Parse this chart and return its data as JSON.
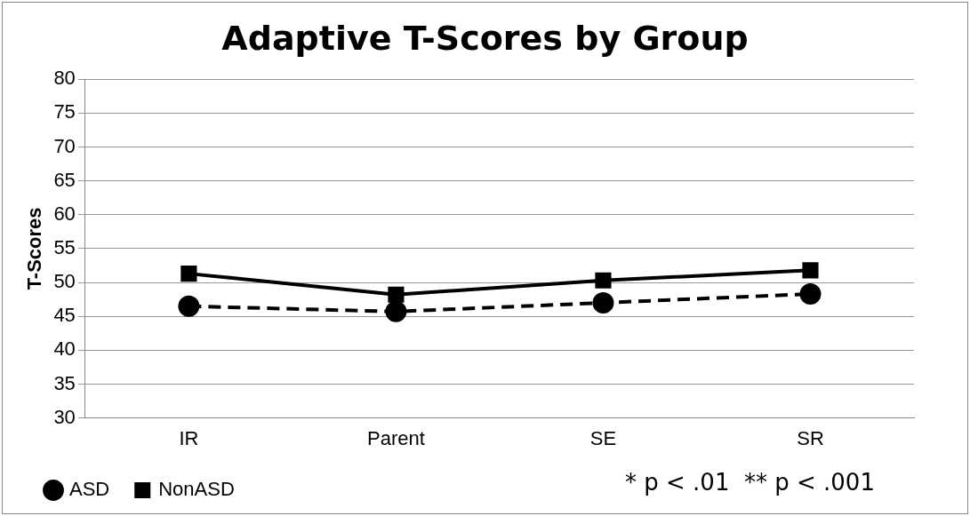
{
  "chart_data": {
    "type": "line",
    "title": "Adaptive T-Scores by Group",
    "ylabel": "T-Scores",
    "categories": [
      "IR",
      "Parent",
      "SE",
      "SR"
    ],
    "series": [
      {
        "name": "ASD",
        "color": "#000000",
        "values": [
          46.5,
          45.7,
          47.0,
          48.3
        ],
        "marker": "circle",
        "line_style": "dashed"
      },
      {
        "name": "NonASD",
        "color": "#000000",
        "values": [
          51.3,
          48.2,
          50.3,
          51.8
        ],
        "marker": "square",
        "line_style": "solid"
      }
    ],
    "ylim": [
      30,
      80
    ],
    "yticks": [
      30,
      35,
      40,
      45,
      50,
      55,
      60,
      65,
      70,
      75,
      80
    ],
    "grid": "y",
    "legend": "bottom",
    "annotations": [
      "* p < .01  ** p < .001"
    ]
  }
}
